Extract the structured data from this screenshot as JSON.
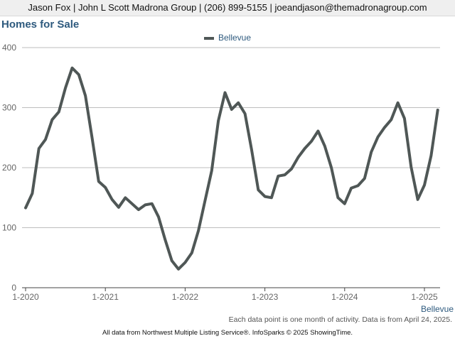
{
  "header": {
    "contact_line": "Jason Fox | John L Scott Madrona Group | (206) 899-5155 | joeandjason@themadronagroup.com"
  },
  "chart_data": {
    "type": "line",
    "title": "Homes for Sale",
    "xlabel": "",
    "ylabel": "",
    "ylim": [
      0,
      400
    ],
    "yticks": [
      0,
      100,
      200,
      300,
      400
    ],
    "xticks": [
      "1-2020",
      "1-2021",
      "1-2022",
      "1-2023",
      "1-2024",
      "1-2025"
    ],
    "grid": true,
    "legend_position": "top-center",
    "x_start": "2020-01",
    "series": [
      {
        "name": "Bellevue",
        "color": "#4f5756",
        "values": [
          133,
          157,
          232,
          247,
          280,
          293,
          333,
          366,
          355,
          320,
          250,
          177,
          167,
          147,
          134,
          150,
          140,
          130,
          138,
          140,
          118,
          80,
          45,
          31,
          42,
          58,
          95,
          145,
          195,
          278,
          325,
          297,
          308,
          290,
          230,
          163,
          152,
          150,
          186,
          188,
          198,
          217,
          232,
          244,
          261,
          236,
          200,
          150,
          140,
          166,
          170,
          182,
          226,
          251,
          267,
          280,
          308,
          282,
          201,
          147,
          171,
          220,
          296
        ]
      }
    ]
  },
  "notes": {
    "series_label": "Bellevue",
    "data_note": "Each data point is one month of activity. Data is from April 24, 2025.",
    "source": "All data from Northwest Multiple Listing Service®. InfoSparks © 2025 ShowingTime."
  }
}
